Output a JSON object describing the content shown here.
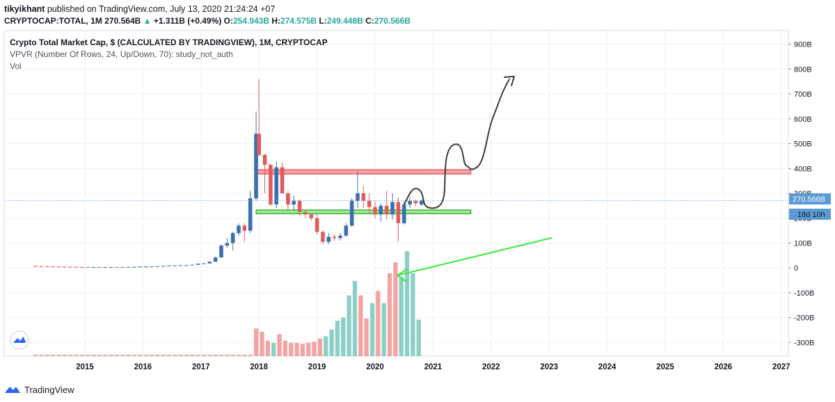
{
  "header": {
    "publisher": "tikyikhant",
    "published_text": "published on TradingView.com, July 13, 2020 21:24:24 +07",
    "symbol": "CRYPTOCAP:TOTAL, 1M",
    "last": "270.564B",
    "change": "+1.311B (+0.49%)",
    "o_label": "O:",
    "o_val": "254.943B",
    "h_label": "H:",
    "h_val": "274.575B",
    "l_label": "L:",
    "l_val": "249.448B",
    "c_label": "C:",
    "c_val": "270.566B"
  },
  "legend": {
    "title": "Crypto Total Market Cap, $ (CALCULATED BY TRADINGVIEW), 1M, CRYPTOCAP",
    "vpvr": "VPVR (Number Of Rows, 24, Up/Down, 70): study_not_auth",
    "vol": "Vol"
  },
  "price_label": "270.566B",
  "countdown_label": "18d 10h",
  "footer": {
    "brand": "TradingView"
  },
  "colors": {
    "up": "#3d6fb0",
    "down": "#e05b5b",
    "vol_up": "#8ccfc4",
    "vol_down": "#f4a3a3",
    "resistance_fill": "#f5a3a3",
    "resistance_stroke": "#d94848",
    "support_fill": "#9bef8e",
    "support_stroke": "#2a9a2a",
    "arrow_green": "#3ee83e",
    "last_price_bg": "#5b9bd5"
  },
  "chart_data": {
    "type": "candlestick",
    "x_ticks": [
      "2015",
      "2016",
      "2017",
      "2018",
      "2019",
      "2020",
      "2021",
      "2022",
      "2023",
      "2024",
      "2025",
      "2026",
      "2027"
    ],
    "y_ticks": [
      "900B",
      "800B",
      "700B",
      "600B",
      "500B",
      "400B",
      "300B",
      "200B",
      "100B",
      "0",
      "-100B",
      "-200B",
      "-300B"
    ],
    "ylim": [
      -355,
      955
    ],
    "last_value": 270.566,
    "zones": [
      {
        "name": "resistance",
        "y_low": 378,
        "y_high": 395,
        "x_start": 2017.95,
        "x_end": 2021.65
      },
      {
        "name": "support",
        "y_low": 218,
        "y_high": 233,
        "x_start": 2017.95,
        "x_end": 2021.65
      }
    ],
    "candles": [
      {
        "t": 2014.15,
        "o": 8,
        "h": 10,
        "l": 6,
        "c": 7
      },
      {
        "t": 2014.25,
        "o": 7,
        "h": 8,
        "l": 6,
        "c": 6.5
      },
      {
        "t": 2014.35,
        "o": 6.5,
        "h": 8,
        "l": 5,
        "c": 6
      },
      {
        "t": 2014.45,
        "o": 6,
        "h": 7,
        "l": 5,
        "c": 5.5
      },
      {
        "t": 2014.55,
        "o": 5.5,
        "h": 6.5,
        "l": 4,
        "c": 5
      },
      {
        "t": 2014.65,
        "o": 5,
        "h": 6,
        "l": 4,
        "c": 4.5
      },
      {
        "t": 2014.75,
        "o": 4.5,
        "h": 5.5,
        "l": 3.5,
        "c": 4.2
      },
      {
        "t": 2014.85,
        "o": 4.2,
        "h": 5,
        "l": 3.5,
        "c": 4
      },
      {
        "t": 2014.95,
        "o": 4,
        "h": 4.5,
        "l": 3,
        "c": 3.6
      },
      {
        "t": 2015.05,
        "o": 3.6,
        "h": 4,
        "l": 2.5,
        "c": 3
      },
      {
        "t": 2015.15,
        "o": 3,
        "h": 3.5,
        "l": 2.5,
        "c": 3.2
      },
      {
        "t": 2015.25,
        "o": 3.2,
        "h": 3.6,
        "l": 2.8,
        "c": 3
      },
      {
        "t": 2015.35,
        "o": 3,
        "h": 3.5,
        "l": 2.8,
        "c": 3.1
      },
      {
        "t": 2015.45,
        "o": 3.1,
        "h": 4,
        "l": 2.9,
        "c": 3.5
      },
      {
        "t": 2015.55,
        "o": 3.5,
        "h": 4,
        "l": 3,
        "c": 3.4
      },
      {
        "t": 2015.65,
        "o": 3.4,
        "h": 3.8,
        "l": 3,
        "c": 3.3
      },
      {
        "t": 2015.75,
        "o": 3.3,
        "h": 4,
        "l": 3.1,
        "c": 3.8
      },
      {
        "t": 2015.85,
        "o": 3.8,
        "h": 5,
        "l": 3.6,
        "c": 4.5
      },
      {
        "t": 2015.95,
        "o": 4.5,
        "h": 5.5,
        "l": 4.2,
        "c": 5.2
      },
      {
        "t": 2016.05,
        "o": 5.2,
        "h": 6,
        "l": 4.8,
        "c": 5.5
      },
      {
        "t": 2016.15,
        "o": 5.5,
        "h": 6.5,
        "l": 5,
        "c": 6.5
      },
      {
        "t": 2016.25,
        "o": 6.5,
        "h": 7.5,
        "l": 6,
        "c": 7
      },
      {
        "t": 2016.35,
        "o": 7,
        "h": 8.5,
        "l": 6.5,
        "c": 8
      },
      {
        "t": 2016.45,
        "o": 8,
        "h": 10,
        "l": 7.5,
        "c": 9.5
      },
      {
        "t": 2016.55,
        "o": 9.5,
        "h": 11,
        "l": 9,
        "c": 10
      },
      {
        "t": 2016.65,
        "o": 10,
        "h": 11,
        "l": 9.5,
        "c": 10.5
      },
      {
        "t": 2016.75,
        "o": 10.5,
        "h": 11.5,
        "l": 10,
        "c": 11
      },
      {
        "t": 2016.85,
        "o": 11,
        "h": 13,
        "l": 10.5,
        "c": 12.5
      },
      {
        "t": 2016.95,
        "o": 12.5,
        "h": 17,
        "l": 12,
        "c": 17
      },
      {
        "t": 2017.05,
        "o": 17,
        "h": 19,
        "l": 15,
        "c": 18
      },
      {
        "t": 2017.15,
        "o": 18,
        "h": 26,
        "l": 17,
        "c": 25
      },
      {
        "t": 2017.25,
        "o": 25,
        "h": 45,
        "l": 24,
        "c": 42
      },
      {
        "t": 2017.35,
        "o": 42,
        "h": 95,
        "l": 40,
        "c": 90
      },
      {
        "t": 2017.45,
        "o": 90,
        "h": 120,
        "l": 80,
        "c": 100
      },
      {
        "t": 2017.55,
        "o": 100,
        "h": 145,
        "l": 70,
        "c": 140
      },
      {
        "t": 2017.65,
        "o": 140,
        "h": 180,
        "l": 130,
        "c": 170
      },
      {
        "t": 2017.75,
        "o": 170,
        "h": 180,
        "l": 105,
        "c": 150
      },
      {
        "t": 2017.85,
        "o": 150,
        "h": 310,
        "l": 140,
        "c": 280
      },
      {
        "t": 2017.95,
        "o": 280,
        "h": 630,
        "l": 270,
        "c": 540
      },
      {
        "t": 2018.0,
        "o": 540,
        "h": 760,
        "l": 450,
        "c": 455
      },
      {
        "t": 2018.1,
        "o": 455,
        "h": 460,
        "l": 300,
        "c": 415
      },
      {
        "t": 2018.2,
        "o": 415,
        "h": 420,
        "l": 250,
        "c": 255
      },
      {
        "t": 2018.3,
        "o": 255,
        "h": 430,
        "l": 240,
        "c": 405
      },
      {
        "t": 2018.4,
        "o": 405,
        "h": 425,
        "l": 300,
        "c": 300
      },
      {
        "t": 2018.5,
        "o": 300,
        "h": 310,
        "l": 230,
        "c": 255
      },
      {
        "t": 2018.6,
        "o": 255,
        "h": 290,
        "l": 230,
        "c": 270
      },
      {
        "t": 2018.7,
        "o": 270,
        "h": 275,
        "l": 210,
        "c": 225
      },
      {
        "t": 2018.8,
        "o": 225,
        "h": 230,
        "l": 200,
        "c": 215
      },
      {
        "t": 2018.9,
        "o": 215,
        "h": 220,
        "l": 190,
        "c": 200
      },
      {
        "t": 2019.0,
        "o": 200,
        "h": 215,
        "l": 135,
        "c": 145
      },
      {
        "t": 2019.1,
        "o": 145,
        "h": 150,
        "l": 95,
        "c": 105
      },
      {
        "t": 2019.2,
        "o": 105,
        "h": 140,
        "l": 95,
        "c": 125
      },
      {
        "t": 2019.3,
        "o": 125,
        "h": 135,
        "l": 110,
        "c": 120
      },
      {
        "t": 2019.4,
        "o": 120,
        "h": 140,
        "l": 110,
        "c": 130
      },
      {
        "t": 2019.5,
        "o": 130,
        "h": 180,
        "l": 125,
        "c": 170
      },
      {
        "t": 2019.6,
        "o": 170,
        "h": 280,
        "l": 165,
        "c": 270
      },
      {
        "t": 2019.7,
        "o": 270,
        "h": 390,
        "l": 240,
        "c": 300
      },
      {
        "t": 2019.8,
        "o": 300,
        "h": 330,
        "l": 240,
        "c": 270
      },
      {
        "t": 2019.9,
        "o": 270,
        "h": 300,
        "l": 220,
        "c": 245
      },
      {
        "t": 2020.0,
        "o": 245,
        "h": 270,
        "l": 200,
        "c": 215
      },
      {
        "t": 2020.1,
        "o": 215,
        "h": 260,
        "l": 185,
        "c": 250
      },
      {
        "t": 2020.2,
        "o": 250,
        "h": 310,
        "l": 195,
        "c": 215
      },
      {
        "t": 2020.3,
        "o": 215,
        "h": 300,
        "l": 195,
        "c": 265
      },
      {
        "t": 2020.4,
        "o": 265,
        "h": 285,
        "l": 105,
        "c": 180
      },
      {
        "t": 2020.5,
        "o": 180,
        "h": 265,
        "l": 175,
        "c": 255
      },
      {
        "t": 2020.6,
        "o": 255,
        "h": 285,
        "l": 240,
        "c": 270
      },
      {
        "t": 2020.7,
        "o": 270,
        "h": 275,
        "l": 250,
        "c": 260
      },
      {
        "t": 2020.8,
        "o": 255,
        "h": 275,
        "l": 250,
        "c": 270.5
      }
    ],
    "volume": [
      {
        "t": 2017.95,
        "v": 0.25,
        "up": false
      },
      {
        "t": 2018.05,
        "v": 0.22,
        "up": false
      },
      {
        "t": 2018.15,
        "v": 0.14,
        "up": false
      },
      {
        "t": 2018.25,
        "v": 0.12,
        "up": true
      },
      {
        "t": 2018.35,
        "v": 0.2,
        "up": false
      },
      {
        "t": 2018.45,
        "v": 0.14,
        "up": false
      },
      {
        "t": 2018.55,
        "v": 0.12,
        "up": false
      },
      {
        "t": 2018.65,
        "v": 0.12,
        "up": false
      },
      {
        "t": 2018.75,
        "v": 0.11,
        "up": false
      },
      {
        "t": 2018.85,
        "v": 0.12,
        "up": false
      },
      {
        "t": 2018.95,
        "v": 0.13,
        "up": false
      },
      {
        "t": 2019.05,
        "v": 0.16,
        "up": false
      },
      {
        "t": 2019.15,
        "v": 0.18,
        "up": true
      },
      {
        "t": 2019.25,
        "v": 0.24,
        "up": true
      },
      {
        "t": 2019.35,
        "v": 0.32,
        "up": true
      },
      {
        "t": 2019.45,
        "v": 0.35,
        "up": true
      },
      {
        "t": 2019.55,
        "v": 0.55,
        "up": true
      },
      {
        "t": 2019.65,
        "v": 0.68,
        "up": true
      },
      {
        "t": 2019.75,
        "v": 0.55,
        "up": false
      },
      {
        "t": 2019.85,
        "v": 0.34,
        "up": false
      },
      {
        "t": 2019.95,
        "v": 0.48,
        "up": true
      },
      {
        "t": 2020.05,
        "v": 0.59,
        "up": false
      },
      {
        "t": 2020.15,
        "v": 0.48,
        "up": true
      },
      {
        "t": 2020.25,
        "v": 0.75,
        "up": false
      },
      {
        "t": 2020.35,
        "v": 0.85,
        "up": false
      },
      {
        "t": 2020.45,
        "v": 0.72,
        "up": true
      },
      {
        "t": 2020.55,
        "v": 0.95,
        "up": true
      },
      {
        "t": 2020.65,
        "v": 0.75,
        "up": true
      },
      {
        "t": 2020.75,
        "v": 0.33,
        "up": true
      }
    ]
  }
}
